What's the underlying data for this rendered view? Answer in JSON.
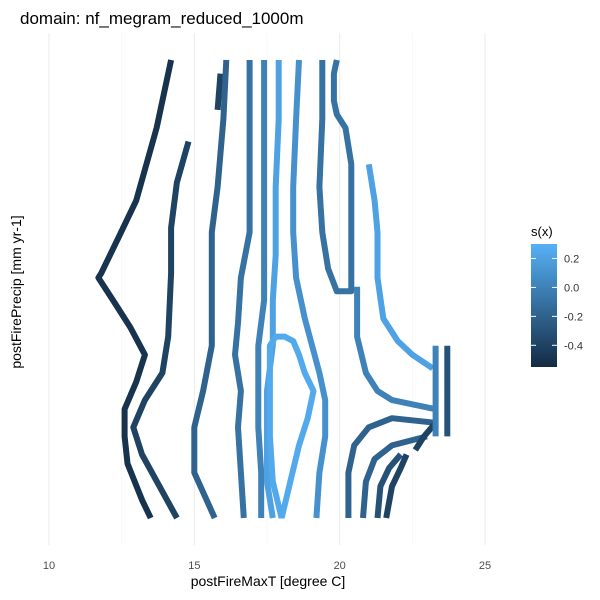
{
  "chart_data": {
    "type": "contour",
    "title": "domain: nf_megram_reduced_1000m",
    "xlabel": "postFireMaxT [degree C]",
    "ylabel": "postFirePrecip [mm yr-1]",
    "xlim": [
      10,
      25
    ],
    "x_ticks": [
      10,
      15,
      20,
      25
    ],
    "x_tick_labels": [
      "10",
      "15",
      "20",
      "25"
    ],
    "y_tick_labels": [],
    "grid": true,
    "legend": {
      "title": "s(x)",
      "placement": "right",
      "min": -0.55,
      "max": 0.3,
      "ticks": [
        0.2,
        0.0,
        -0.2,
        -0.4
      ],
      "tick_labels": [
        "0.2",
        "0.0",
        "-0.2",
        "-0.4"
      ],
      "color_low": "#132B43",
      "color_high": "#56B1F7"
    },
    "contours": [
      {
        "level": -0.5,
        "points": [
          [
            14.2,
            0.93
          ],
          [
            13.7,
            0.78
          ],
          [
            13.0,
            0.62
          ],
          [
            12.4,
            0.54
          ],
          [
            11.8,
            0.46
          ],
          [
            11.7,
            0.45
          ],
          [
            12.2,
            0.4
          ],
          [
            12.8,
            0.34
          ],
          [
            13.3,
            0.28
          ],
          [
            13.0,
            0.22
          ],
          [
            12.6,
            0.16
          ],
          [
            12.6,
            0.1
          ],
          [
            12.7,
            0.04
          ],
          [
            13.2,
            -0.04
          ],
          [
            13.5,
            -0.08
          ]
        ]
      },
      {
        "level": -0.4,
        "points": [
          [
            14.4,
            -0.08
          ],
          [
            13.8,
            -0.01
          ],
          [
            13.2,
            0.06
          ],
          [
            12.9,
            0.12
          ],
          [
            13.3,
            0.18
          ],
          [
            13.9,
            0.24
          ],
          [
            14.1,
            0.32
          ],
          [
            14.2,
            0.46
          ],
          [
            14.2,
            0.56
          ],
          [
            14.4,
            0.66
          ],
          [
            14.8,
            0.75
          ]
        ]
      },
      {
        "level": -0.4,
        "points": [
          [
            15.8,
            0.82
          ],
          [
            15.9,
            0.9
          ]
        ]
      },
      {
        "level": -0.2,
        "points": [
          [
            15.7,
            -0.08
          ],
          [
            15.0,
            0.02
          ],
          [
            15.0,
            0.12
          ],
          [
            15.3,
            0.2
          ],
          [
            15.6,
            0.3
          ],
          [
            15.6,
            0.45
          ],
          [
            15.6,
            0.55
          ],
          [
            15.8,
            0.65
          ],
          [
            16.0,
            0.8
          ],
          [
            16.1,
            0.93
          ]
        ]
      },
      {
        "level": -0.1,
        "points": [
          [
            16.7,
            -0.08
          ],
          [
            16.6,
            0.02
          ],
          [
            16.5,
            0.12
          ],
          [
            16.6,
            0.2
          ],
          [
            16.4,
            0.28
          ],
          [
            16.5,
            0.35
          ],
          [
            16.6,
            0.45
          ],
          [
            16.9,
            0.55
          ],
          [
            16.9,
            0.65
          ],
          [
            16.9,
            0.8
          ],
          [
            16.9,
            0.93
          ]
        ]
      },
      {
        "level": 0.0,
        "points": [
          [
            17.3,
            -0.08
          ],
          [
            17.3,
            0.02
          ],
          [
            17.2,
            0.12
          ],
          [
            17.2,
            0.2
          ],
          [
            17.2,
            0.3
          ],
          [
            17.4,
            0.4
          ],
          [
            17.4,
            0.55
          ],
          [
            17.4,
            0.7
          ],
          [
            17.4,
            0.93
          ]
        ]
      },
      {
        "level": 0.2,
        "points": [
          [
            17.9,
            0.93
          ],
          [
            17.9,
            0.8
          ],
          [
            17.8,
            0.65
          ],
          [
            17.8,
            0.5
          ],
          [
            17.7,
            0.4
          ],
          [
            17.7,
            0.3
          ],
          [
            17.5,
            0.2
          ],
          [
            17.5,
            0.1
          ],
          [
            17.5,
            0.0
          ],
          [
            17.7,
            -0.08
          ]
        ]
      },
      {
        "level": 0.25,
        "points": [
          [
            18.0,
            -0.08
          ],
          [
            18.3,
            0.0
          ],
          [
            18.6,
            0.08
          ],
          [
            18.9,
            0.14
          ],
          [
            19.1,
            0.2
          ],
          [
            18.8,
            0.24
          ],
          [
            18.6,
            0.28
          ],
          [
            18.4,
            0.31
          ],
          [
            18.1,
            0.32
          ],
          [
            17.8,
            0.32
          ],
          [
            17.6,
            0.3
          ],
          [
            17.6,
            0.2
          ],
          [
            17.6,
            0.1
          ],
          [
            17.7,
            0.0
          ],
          [
            18.0,
            -0.08
          ]
        ]
      },
      {
        "level": 0.1,
        "points": [
          [
            18.6,
            0.93
          ],
          [
            18.5,
            0.8
          ],
          [
            18.4,
            0.65
          ],
          [
            18.4,
            0.55
          ],
          [
            18.5,
            0.45
          ],
          [
            18.8,
            0.36
          ],
          [
            19.3,
            0.24
          ],
          [
            19.5,
            0.18
          ],
          [
            19.5,
            0.1
          ],
          [
            19.3,
            0.02
          ],
          [
            19.2,
            -0.08
          ]
        ]
      },
      {
        "level": -0.1,
        "points": [
          [
            19.4,
            0.93
          ],
          [
            19.4,
            0.8
          ],
          [
            19.3,
            0.65
          ],
          [
            19.4,
            0.55
          ],
          [
            19.6,
            0.47
          ],
          [
            19.9,
            0.42
          ],
          [
            20.4,
            0.42
          ],
          [
            20.4,
            0.55
          ],
          [
            20.4,
            0.7
          ],
          [
            20.2,
            0.78
          ],
          [
            19.9,
            0.81
          ],
          [
            19.8,
            0.84
          ],
          [
            19.8,
            0.9
          ],
          [
            19.9,
            0.93
          ]
        ]
      },
      {
        "level": 0.2,
        "points": [
          [
            21.0,
            0.7
          ],
          [
            21.2,
            0.62
          ],
          [
            21.3,
            0.55
          ],
          [
            21.3,
            0.45
          ],
          [
            21.5,
            0.36
          ],
          [
            22.0,
            0.31
          ],
          [
            22.5,
            0.28
          ],
          [
            23.2,
            0.25
          ]
        ]
      },
      {
        "level": 0.0,
        "points": [
          [
            20.6,
            0.43
          ],
          [
            20.6,
            0.32
          ],
          [
            20.9,
            0.24
          ],
          [
            21.3,
            0.2
          ],
          [
            21.8,
            0.18
          ],
          [
            23.3,
            0.16
          ]
        ]
      },
      {
        "level": -0.2,
        "points": [
          [
            20.3,
            -0.08
          ],
          [
            20.3,
            0.02
          ],
          [
            20.5,
            0.08
          ],
          [
            21.0,
            0.12
          ],
          [
            21.8,
            0.14
          ],
          [
            23.3,
            0.13
          ]
        ]
      },
      {
        "level": -0.2,
        "points": [
          [
            20.8,
            -0.08
          ],
          [
            20.9,
            0.0
          ],
          [
            21.2,
            0.05
          ],
          [
            21.8,
            0.08
          ],
          [
            23.0,
            0.1
          ]
        ]
      },
      {
        "level": -0.3,
        "points": [
          [
            21.3,
            -0.08
          ],
          [
            21.4,
            -0.01
          ],
          [
            21.7,
            0.03
          ],
          [
            22.1,
            0.06
          ]
        ]
      },
      {
        "level": -0.4,
        "points": [
          [
            21.6,
            -0.08
          ],
          [
            21.8,
            -0.01
          ],
          [
            22.1,
            0.03
          ],
          [
            22.3,
            0.06
          ]
        ]
      },
      {
        "level": -0.4,
        "points": [
          [
            22.6,
            0.07
          ],
          [
            22.9,
            0.1
          ],
          [
            23.3,
            0.13
          ]
        ]
      },
      {
        "level": 0.0,
        "points": [
          [
            23.3,
            0.3
          ],
          [
            23.3,
            0.1
          ]
        ]
      },
      {
        "level": -0.3,
        "points": [
          [
            23.7,
            0.3
          ],
          [
            23.7,
            0.1
          ]
        ]
      }
    ]
  }
}
